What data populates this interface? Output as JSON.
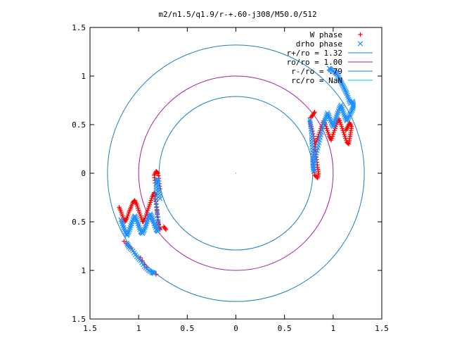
{
  "chart_data": {
    "type": "scatter",
    "title": "m2/n1.5/q1.9/r-+.60-j308/M50.0/512",
    "xlim": [
      -1.5,
      1.5
    ],
    "ylim": [
      -1.5,
      1.5
    ],
    "x_ticks": [
      -1.5,
      -1,
      -0.5,
      0,
      0.5,
      1,
      1.5
    ],
    "x_tick_labels": [
      "1.5",
      "1",
      "0.5",
      "0",
      "0.5",
      "1",
      "1.5"
    ],
    "y_ticks": [
      1.5,
      1,
      0.5,
      0,
      -0.5,
      -1,
      -1.5
    ],
    "y_tick_labels": [
      "1.5",
      "1",
      "0.5",
      "0",
      "0.5",
      "1",
      "1.5"
    ],
    "legend_position": "top-right",
    "grid": false,
    "circles": [
      {
        "name": "r+/ro = 1.32",
        "radius": 1.32,
        "color": "#1f7fbf"
      },
      {
        "name": "ro/ro = 1.00",
        "radius": 1.0,
        "color": "#a020a0"
      },
      {
        "name": "r-/ro = .79",
        "radius": 0.79,
        "color": "#1f7fbf"
      },
      {
        "name": "rc/ro = NaN",
        "radius": null,
        "color": "#00d0d0"
      }
    ],
    "series": [
      {
        "name": "W phase",
        "marker": "+",
        "color": "#ff0000",
        "points": [
          [
            -1.2,
            -0.35
          ],
          [
            -1.18,
            -0.4
          ],
          [
            -1.16,
            -0.46
          ],
          [
            -1.14,
            -0.5
          ],
          [
            -1.12,
            -0.46
          ],
          [
            -1.1,
            -0.4
          ],
          [
            -1.08,
            -0.35
          ],
          [
            -1.06,
            -0.3
          ],
          [
            -1.04,
            -0.28
          ],
          [
            -1.02,
            -0.32
          ],
          [
            -1.0,
            -0.38
          ],
          [
            -0.98,
            -0.44
          ],
          [
            -0.96,
            -0.5
          ],
          [
            -0.94,
            -0.48
          ],
          [
            -0.92,
            -0.42
          ],
          [
            -0.9,
            -0.36
          ],
          [
            -0.88,
            -0.3
          ],
          [
            -0.86,
            -0.24
          ],
          [
            -0.84,
            -0.2
          ],
          [
            -0.83,
            -0.24
          ],
          [
            -0.82,
            -0.32
          ],
          [
            -0.81,
            -0.4
          ],
          [
            -0.8,
            -0.48
          ],
          [
            -0.79,
            -0.56
          ],
          [
            -0.78,
            -0.58
          ],
          [
            -0.8,
            -0.5
          ],
          [
            -0.81,
            -0.38
          ],
          [
            -0.82,
            -0.22
          ],
          [
            -0.83,
            -0.1
          ],
          [
            -0.84,
            -0.02
          ],
          [
            -0.82,
            0.02
          ],
          [
            -0.8,
            0.0
          ],
          [
            -0.79,
            -0.08
          ],
          [
            -0.78,
            -0.16
          ],
          [
            -0.72,
            -0.58
          ],
          [
            -0.74,
            -0.55
          ],
          [
            -1.15,
            -0.7
          ],
          [
            -1.08,
            -0.77
          ],
          [
            -0.98,
            -0.87
          ],
          [
            -0.92,
            -0.97
          ],
          [
            -0.82,
            -1.04
          ],
          [
            0.76,
            0.53
          ],
          [
            0.78,
            0.46
          ],
          [
            0.8,
            0.38
          ],
          [
            0.81,
            0.3
          ],
          [
            0.82,
            0.22
          ],
          [
            0.83,
            0.14
          ],
          [
            0.84,
            0.06
          ],
          [
            0.85,
            0.0
          ],
          [
            0.84,
            -0.05
          ],
          [
            0.81,
            -0.02
          ],
          [
            0.8,
            0.06
          ],
          [
            0.79,
            0.14
          ],
          [
            0.8,
            0.22
          ],
          [
            0.82,
            0.3
          ],
          [
            0.84,
            0.36
          ],
          [
            0.86,
            0.42
          ],
          [
            0.88,
            0.48
          ],
          [
            0.9,
            0.54
          ],
          [
            0.92,
            0.5
          ],
          [
            0.94,
            0.44
          ],
          [
            0.96,
            0.38
          ],
          [
            0.98,
            0.34
          ],
          [
            1.0,
            0.4
          ],
          [
            1.02,
            0.46
          ],
          [
            1.04,
            0.52
          ],
          [
            1.06,
            0.56
          ],
          [
            1.08,
            0.5
          ],
          [
            1.1,
            0.44
          ],
          [
            1.12,
            0.38
          ],
          [
            1.14,
            0.32
          ],
          [
            1.16,
            0.3
          ],
          [
            1.17,
            0.36
          ],
          [
            1.18,
            0.42
          ],
          [
            1.19,
            0.48
          ],
          [
            1.17,
            0.52
          ],
          [
            1.15,
            0.48
          ],
          [
            1.13,
            0.44
          ],
          [
            0.77,
            0.57
          ],
          [
            0.79,
            0.6
          ],
          [
            0.81,
            0.63
          ]
        ]
      },
      {
        "name": "drho phase",
        "marker": "x",
        "color": "#1e90ff",
        "points": [
          [
            -1.18,
            -0.48
          ],
          [
            -1.16,
            -0.54
          ],
          [
            -1.14,
            -0.6
          ],
          [
            -1.12,
            -0.64
          ],
          [
            -1.1,
            -0.6
          ],
          [
            -1.08,
            -0.54
          ],
          [
            -1.06,
            -0.48
          ],
          [
            -1.04,
            -0.44
          ],
          [
            -1.02,
            -0.48
          ],
          [
            -1.0,
            -0.54
          ],
          [
            -0.98,
            -0.6
          ],
          [
            -0.96,
            -0.62
          ],
          [
            -0.94,
            -0.58
          ],
          [
            -0.92,
            -0.52
          ],
          [
            -0.9,
            -0.46
          ],
          [
            -0.88,
            -0.42
          ],
          [
            -0.86,
            -0.46
          ],
          [
            -0.84,
            -0.52
          ],
          [
            -0.82,
            -0.58
          ],
          [
            -0.8,
            -0.6
          ],
          [
            -0.8,
            -0.5
          ],
          [
            -0.81,
            -0.4
          ],
          [
            -0.82,
            -0.3
          ],
          [
            -0.82,
            -0.2
          ],
          [
            -0.82,
            -0.12
          ],
          [
            -0.81,
            -0.06
          ],
          [
            -0.8,
            -0.1
          ],
          [
            -0.79,
            -0.18
          ],
          [
            -0.78,
            -0.26
          ],
          [
            -1.12,
            -0.72
          ],
          [
            -1.1,
            -0.76
          ],
          [
            -1.06,
            -0.8
          ],
          [
            -1.02,
            -0.86
          ],
          [
            -0.98,
            -0.9
          ],
          [
            -0.94,
            -0.96
          ],
          [
            -0.9,
            -1.0
          ],
          [
            -0.86,
            -1.02
          ],
          [
            -0.84,
            -1.03
          ],
          [
            0.76,
            0.55
          ],
          [
            0.77,
            0.48
          ],
          [
            0.78,
            0.4
          ],
          [
            0.78,
            0.32
          ],
          [
            0.79,
            0.24
          ],
          [
            0.79,
            0.16
          ],
          [
            0.79,
            0.08
          ],
          [
            0.8,
            0.02
          ],
          [
            0.81,
            0.1
          ],
          [
            0.82,
            0.18
          ],
          [
            0.84,
            0.26
          ],
          [
            0.86,
            0.34
          ],
          [
            0.88,
            0.42
          ],
          [
            0.9,
            0.5
          ],
          [
            0.92,
            0.56
          ],
          [
            0.94,
            0.62
          ],
          [
            0.96,
            0.58
          ],
          [
            0.98,
            0.52
          ],
          [
            1.0,
            0.48
          ],
          [
            1.02,
            0.54
          ],
          [
            1.04,
            0.6
          ],
          [
            1.06,
            0.66
          ],
          [
            1.08,
            0.7
          ],
          [
            1.1,
            0.64
          ],
          [
            1.12,
            0.58
          ],
          [
            1.14,
            0.54
          ],
          [
            1.16,
            0.58
          ],
          [
            1.18,
            0.62
          ],
          [
            1.2,
            0.66
          ],
          [
            1.21,
            0.7
          ],
          [
            1.2,
            0.74
          ],
          [
            1.18,
            0.72
          ],
          [
            1.16,
            0.76
          ],
          [
            1.14,
            0.82
          ],
          [
            1.12,
            0.86
          ],
          [
            1.1,
            0.9
          ],
          [
            1.08,
            0.94
          ],
          [
            1.06,
            0.98
          ],
          [
            1.04,
            1.02
          ],
          [
            1.02,
            1.04
          ],
          [
            0.98,
            1.06
          ],
          [
            0.96,
            1.08
          ]
        ]
      }
    ]
  }
}
